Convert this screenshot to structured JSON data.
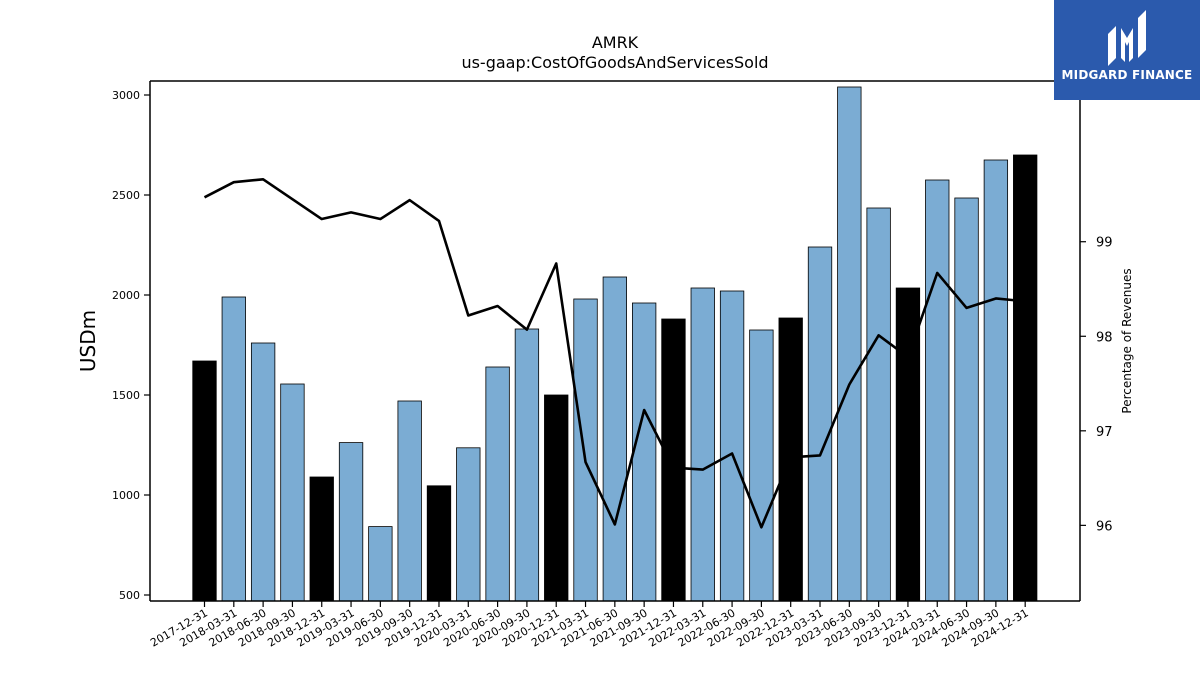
{
  "chart_data": {
    "type": "bar",
    "title": "AMRK",
    "subtitle": "us-gaap:CostOfGoodsAndServicesSold",
    "ylabel": "USDm",
    "y2label": "Percentage of Revenues",
    "ylim": [
      470,
      3070
    ],
    "y2lim": [
      95.2,
      100.7
    ],
    "yticks": [
      500,
      1000,
      1500,
      2000,
      2500,
      3000
    ],
    "y2ticks": [
      96,
      97,
      98,
      99
    ],
    "categories": [
      "2017-12-31",
      "2018-03-31",
      "2018-06-30",
      "2018-09-30",
      "2018-12-31",
      "2019-03-31",
      "2019-06-30",
      "2019-09-30",
      "2019-12-31",
      "2020-03-31",
      "2020-06-30",
      "2020-09-30",
      "2020-12-31",
      "2021-03-31",
      "2021-06-30",
      "2021-09-30",
      "2021-12-31",
      "2022-03-31",
      "2022-06-30",
      "2022-09-30",
      "2022-12-31",
      "2023-03-31",
      "2023-06-30",
      "2023-09-30",
      "2023-12-31",
      "2024-03-31",
      "2024-06-30",
      "2024-09-30",
      "2024-12-31"
    ],
    "values": [
      1670,
      1990,
      1760,
      1555,
      1090,
      1262,
      842,
      1470,
      1046,
      1236,
      1640,
      1830,
      1500,
      1980,
      2090,
      1960,
      1880,
      2035,
      2020,
      1825,
      1885,
      2240,
      3040,
      2435,
      2035,
      2575,
      2485,
      2675,
      2700
    ],
    "bar_types": [
      "annual",
      "quarter",
      "quarter",
      "quarter",
      "annual",
      "quarter",
      "quarter",
      "quarter",
      "annual",
      "quarter",
      "quarter",
      "quarter",
      "annual",
      "quarter",
      "quarter",
      "quarter",
      "annual",
      "quarter",
      "quarter",
      "quarter",
      "annual",
      "quarter",
      "quarter",
      "quarter",
      "annual",
      "quarter",
      "quarter",
      "quarter",
      "annual"
    ],
    "line_values": [
      99.47,
      99.63,
      99.66,
      99.45,
      99.24,
      99.31,
      99.24,
      99.44,
      99.22,
      98.22,
      98.32,
      98.07,
      98.77,
      96.67,
      96.01,
      97.22,
      96.61,
      96.59,
      96.76,
      95.98,
      96.72,
      96.74,
      97.49,
      98.01,
      97.78,
      98.67,
      98.3,
      98.4,
      98.37
    ],
    "grid": false,
    "colors": {
      "quarter": "#7bacd3",
      "annual": "#000000",
      "line": "#000000",
      "edge": "#000000"
    }
  },
  "logo": {
    "text": "MIDGARD FINANCE",
    "background": "#2b5aad"
  }
}
